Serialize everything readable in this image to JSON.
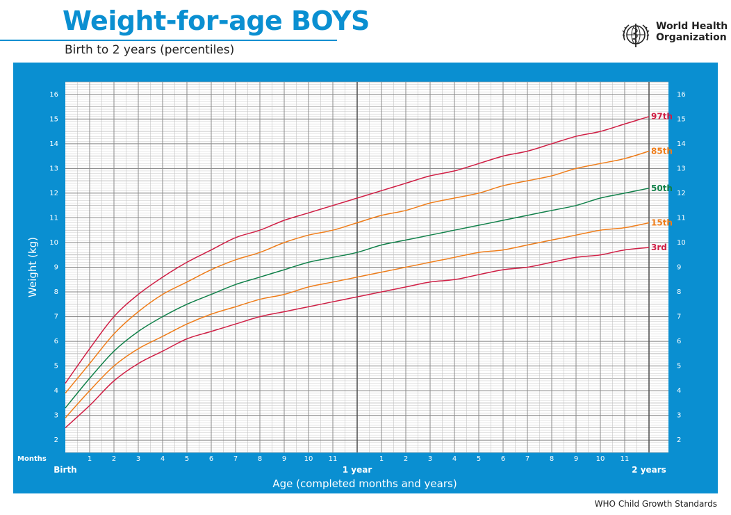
{
  "header": {
    "title": "Weight-for-age BOYS",
    "subtitle": "Birth to 2 years (percentiles)",
    "org_line1": "World Health",
    "org_line2": "Organization"
  },
  "footer": {
    "text": "WHO Child Growth Standards"
  },
  "colors": {
    "panel": "#0a8fd1",
    "p97": "#d01f45",
    "p85": "#ef7d1a",
    "p50": "#11814a",
    "p15": "#ef7d1a",
    "p3": "#d01f45"
  },
  "chart_data": {
    "type": "line",
    "xlabel": "Age (completed months and years)",
    "ylabel": "Weight (kg)",
    "x_unit_label": "Months",
    "x_range_months": [
      0,
      24
    ],
    "ylim": [
      1.5,
      16.5
    ],
    "y_ticks": [
      2,
      3,
      4,
      5,
      6,
      7,
      8,
      9,
      10,
      11,
      12,
      13,
      14,
      15,
      16
    ],
    "x_month_labels": [
      "1",
      "2",
      "3",
      "4",
      "5",
      "6",
      "7",
      "8",
      "9",
      "10",
      "11"
    ],
    "x_major_labels": [
      {
        "month": 0,
        "label": "Birth"
      },
      {
        "month": 12,
        "label": "1 year"
      },
      {
        "month": 24,
        "label": "2 years"
      }
    ],
    "grid": true,
    "x": [
      0,
      1,
      2,
      3,
      4,
      5,
      6,
      7,
      8,
      9,
      10,
      11,
      12,
      13,
      14,
      15,
      16,
      17,
      18,
      19,
      20,
      21,
      22,
      23,
      24
    ],
    "series": [
      {
        "name": "97th",
        "color_key": "p97",
        "values": [
          4.3,
          5.7,
          7.0,
          7.9,
          8.6,
          9.2,
          9.7,
          10.2,
          10.5,
          10.9,
          11.2,
          11.5,
          11.8,
          12.1,
          12.4,
          12.7,
          12.9,
          13.2,
          13.5,
          13.7,
          14.0,
          14.3,
          14.5,
          14.8,
          15.1
        ]
      },
      {
        "name": "85th",
        "color_key": "p85",
        "values": [
          3.9,
          5.1,
          6.3,
          7.2,
          7.9,
          8.4,
          8.9,
          9.3,
          9.6,
          10.0,
          10.3,
          10.5,
          10.8,
          11.1,
          11.3,
          11.6,
          11.8,
          12.0,
          12.3,
          12.5,
          12.7,
          13.0,
          13.2,
          13.4,
          13.7
        ]
      },
      {
        "name": "50th",
        "color_key": "p50",
        "values": [
          3.3,
          4.5,
          5.6,
          6.4,
          7.0,
          7.5,
          7.9,
          8.3,
          8.6,
          8.9,
          9.2,
          9.4,
          9.6,
          9.9,
          10.1,
          10.3,
          10.5,
          10.7,
          10.9,
          11.1,
          11.3,
          11.5,
          11.8,
          12.0,
          12.2
        ]
      },
      {
        "name": "15th",
        "color_key": "p15",
        "values": [
          2.9,
          4.0,
          5.0,
          5.7,
          6.2,
          6.7,
          7.1,
          7.4,
          7.7,
          7.9,
          8.2,
          8.4,
          8.6,
          8.8,
          9.0,
          9.2,
          9.4,
          9.6,
          9.7,
          9.9,
          10.1,
          10.3,
          10.5,
          10.6,
          10.8
        ]
      },
      {
        "name": "3rd",
        "color_key": "p3",
        "values": [
          2.5,
          3.4,
          4.4,
          5.1,
          5.6,
          6.1,
          6.4,
          6.7,
          7.0,
          7.2,
          7.4,
          7.6,
          7.8,
          8.0,
          8.2,
          8.4,
          8.5,
          8.7,
          8.9,
          9.0,
          9.2,
          9.4,
          9.5,
          9.7,
          9.8
        ]
      }
    ]
  }
}
